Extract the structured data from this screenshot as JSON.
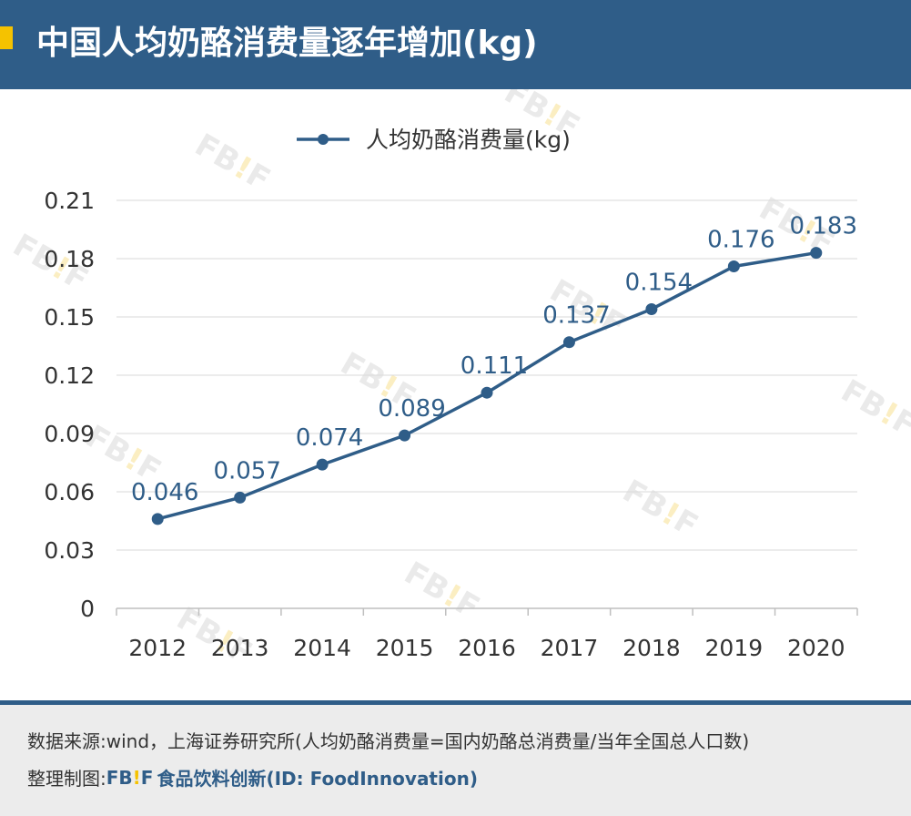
{
  "header": {
    "title": "中国人均奶酪消费量逐年增加(kg)"
  },
  "watermark": {
    "left": "FB",
    "bang": "!",
    "right": "F"
  },
  "footer": {
    "source": "数据来源:wind，上海证券研究所(人均奶酪消费量=国内奶酪总消费量/当年全国总人口数)",
    "credit_label": "整理制图:",
    "logo_left": "FB",
    "logo_bang": "!",
    "logo_right": "F",
    "logo_name": "食品饮料创新(ID: FoodInnovation)"
  },
  "colors": {
    "brand": "#2f5d88",
    "accent": "#f5c200"
  },
  "chart_data": {
    "type": "line",
    "title": "",
    "xlabel": "",
    "ylabel": "",
    "categories": [
      "2012",
      "2013",
      "2014",
      "2015",
      "2016",
      "2017",
      "2018",
      "2019",
      "2020"
    ],
    "series": [
      {
        "name": "人均奶酪消费量(kg)",
        "values": [
          0.046,
          0.057,
          0.074,
          0.089,
          0.111,
          0.137,
          0.154,
          0.176,
          0.183
        ],
        "labels": [
          "0.046",
          "0.057",
          "0.074",
          "0.089",
          "0.111",
          "0.137",
          "0.154",
          "0.176",
          "0.183"
        ]
      }
    ],
    "ylim": [
      0,
      0.21
    ],
    "yticks": [
      "0",
      "0.03",
      "0.06",
      "0.09",
      "0.12",
      "0.15",
      "0.18",
      "0.21"
    ],
    "grid": true,
    "legend": "top-center"
  }
}
